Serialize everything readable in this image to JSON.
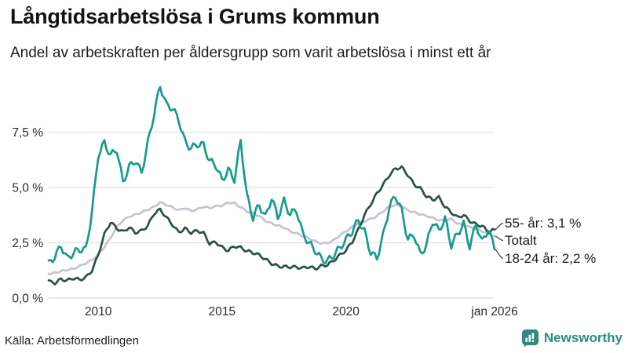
{
  "header": {
    "title": "Långtidsarbetslösa i Grums kommun",
    "subtitle": "Andel av arbetskraften per åldersgrupp som varit arbetslösa i minst ett år"
  },
  "footer": {
    "source": "Källa: Arbetsförmedlingen",
    "brand": "Newsworthy",
    "brand_icon": "bar-chart-speech-bubble-icon",
    "brand_color": "#2c8c80"
  },
  "colors": {
    "series_18_24": "#179b8a",
    "series_55": "#2a5145",
    "series_total": "#c6c4d0",
    "grid": "#e2e2e8",
    "axis": "#dcdce2",
    "connector": "#3a3a3a",
    "text": "#1a1a1a"
  },
  "chart_data": {
    "type": "line",
    "title": "Långtidsarbetslösa i Grums kommun",
    "subtitle": "Andel av arbetskraften per åldersgrupp som varit arbetslösa i minst ett år",
    "grid": true,
    "legend_position": "end-of-line-labels",
    "xlim": [
      2008,
      2026
    ],
    "ylim": [
      0,
      9.9
    ],
    "x_start": 2008,
    "x_step_years": 0.25,
    "x_ticks": [
      {
        "value": 2010,
        "label": "2010"
      },
      {
        "value": 2015,
        "label": "2015"
      },
      {
        "value": 2020,
        "label": "2020"
      },
      {
        "value": 2026,
        "label": "jan 2026"
      }
    ],
    "y_ticks": [
      {
        "value": 0,
        "label": "0,0 %"
      },
      {
        "value": 2.5,
        "label": "2,5 %"
      },
      {
        "value": 5,
        "label": "5,0 %"
      },
      {
        "value": 7.5,
        "label": "7,5 %"
      }
    ],
    "series": [
      {
        "name": "55- år",
        "end_label": "55- år: 3,1 %",
        "end_value": 3.1,
        "color_key": "series_55",
        "values": [
          0.8,
          0.72,
          0.85,
          0.75,
          0.85,
          0.8,
          0.95,
          1.3,
          2.0,
          2.9,
          3.4,
          3.1,
          2.95,
          3.2,
          3.0,
          3.1,
          3.3,
          3.8,
          3.95,
          3.6,
          3.3,
          3.0,
          3.2,
          3.0,
          3.05,
          2.9,
          2.4,
          2.5,
          2.3,
          2.2,
          2.4,
          2.3,
          2.1,
          2.0,
          1.9,
          1.75,
          1.6,
          1.5,
          1.45,
          1.4,
          1.35,
          1.3,
          1.4,
          1.35,
          1.5,
          1.55,
          1.7,
          1.9,
          2.1,
          2.5,
          3.1,
          3.8,
          4.3,
          4.75,
          5.1,
          5.5,
          5.8,
          5.9,
          5.6,
          5.2,
          5.0,
          4.6,
          4.4,
          4.5,
          4.1,
          3.9,
          3.7,
          3.8,
          3.5,
          3.3,
          3.2,
          2.95,
          3.1
        ]
      },
      {
        "name": "Totalt",
        "end_label": "Totalt",
        "end_value": 2.8,
        "color_key": "series_total",
        "values": [
          1.1,
          1.15,
          1.2,
          1.25,
          1.3,
          1.45,
          1.6,
          1.75,
          2.0,
          2.3,
          2.7,
          3.2,
          3.5,
          3.7,
          3.8,
          3.9,
          4.0,
          4.1,
          4.3,
          4.2,
          4.1,
          4.0,
          4.1,
          3.95,
          4.0,
          4.1,
          4.05,
          4.15,
          4.2,
          4.35,
          4.3,
          4.1,
          3.9,
          3.8,
          3.7,
          3.5,
          3.4,
          3.3,
          3.2,
          3.0,
          2.9,
          2.8,
          2.7,
          2.6,
          2.5,
          2.5,
          2.6,
          2.8,
          3.0,
          3.2,
          3.4,
          3.5,
          3.6,
          3.7,
          3.9,
          4.1,
          4.2,
          4.15,
          4.0,
          3.9,
          3.8,
          3.7,
          3.6,
          3.5,
          3.5,
          3.6,
          3.4,
          3.3,
          3.2,
          3.1,
          3.0,
          2.9,
          2.8
        ]
      },
      {
        "name": "18-24 år",
        "end_label": "18-24 år: 2,2 %",
        "end_value": 2.2,
        "color_key": "series_18_24",
        "values": [
          1.7,
          2.0,
          2.4,
          1.7,
          1.9,
          2.1,
          2.2,
          4.0,
          6.6,
          7.1,
          6.4,
          6.6,
          5.1,
          5.9,
          6.3,
          5.8,
          7.1,
          8.3,
          9.5,
          8.6,
          8.5,
          8.1,
          7.2,
          6.9,
          7.0,
          6.85,
          6.05,
          5.9,
          5.3,
          5.9,
          5.5,
          7.2,
          4.6,
          3.5,
          4.1,
          3.6,
          4.6,
          3.8,
          4.5,
          3.8,
          3.9,
          2.8,
          2.4,
          2.2,
          1.9,
          1.8,
          2.0,
          2.2,
          2.5,
          2.9,
          3.5,
          3.1,
          2.2,
          1.9,
          2.8,
          4.0,
          4.5,
          3.9,
          2.7,
          3.0,
          2.1,
          2.4,
          3.4,
          2.9,
          3.5,
          2.4,
          3.0,
          3.5,
          2.4,
          3.3,
          2.4,
          3.0,
          2.2
        ]
      }
    ]
  }
}
